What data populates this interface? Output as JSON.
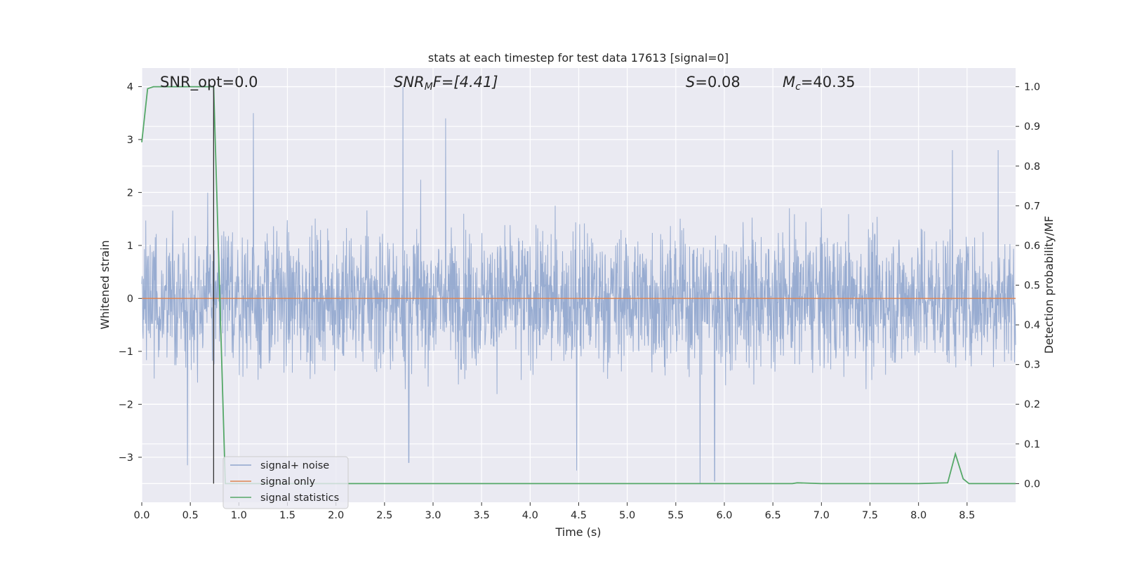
{
  "chart_data": {
    "type": "line",
    "title": "stats at each timestep for test data 17613 [signal=0]",
    "xlabel": "Time (s)",
    "ylabel_left": "Whitened strain",
    "ylabel_right": "Detection probability/MF",
    "xlim": [
      0.0,
      9.0
    ],
    "ylim_left": [
      -3.85,
      4.35
    ],
    "ylim_right": [
      -0.047,
      1.047
    ],
    "xticks": [
      "0.0",
      "0.5",
      "1.0",
      "1.5",
      "2.0",
      "2.5",
      "3.0",
      "3.5",
      "4.0",
      "4.5",
      "5.0",
      "5.5",
      "6.0",
      "6.5",
      "7.0",
      "7.5",
      "8.0",
      "8.5"
    ],
    "yticks_left": [
      "−3",
      "−2",
      "−1",
      "0",
      "1",
      "2",
      "3",
      "4"
    ],
    "yticks_right": [
      "0.0",
      "0.1",
      "0.2",
      "0.3",
      "0.4",
      "0.5",
      "0.6",
      "0.7",
      "0.8",
      "0.9",
      "1.0"
    ],
    "grid": true,
    "legend_location": "lower-left",
    "annotations": {
      "snr_opt": "SNR_opt=0.0",
      "snr_mf": "SNR",
      "snr_mf_sub": "M",
      "snr_mf_rest": "F=[4.41]",
      "s_stat": "S",
      "s_stat_rest": "=0.08",
      "mc": "M",
      "mc_sub": "c",
      "mc_rest": "=40.35"
    },
    "marker_line_x": 0.74,
    "series": [
      {
        "name": "signal+ noise",
        "color": "#8fa5cd",
        "axis": "left",
        "noise_envelope": {
          "typical_abs_max": 2.2,
          "spikes": [
            [
              2.69,
              4.0
            ],
            [
              2.75,
              -3.1
            ],
            [
              1.15,
              3.5
            ],
            [
              3.13,
              3.4
            ],
            [
              5.75,
              -3.5
            ],
            [
              0.47,
              -3.15
            ],
            [
              4.48,
              -3.25
            ],
            [
              5.9,
              -3.45
            ],
            [
              8.35,
              2.8
            ],
            [
              8.82,
              2.8
            ]
          ]
        }
      },
      {
        "name": "signal only",
        "color": "#dd8452",
        "axis": "left",
        "x": [
          0.0,
          9.0
        ],
        "y": [
          0.0,
          0.0
        ]
      },
      {
        "name": "signal statistics",
        "color": "#55a868",
        "axis": "right",
        "x": [
          0.0,
          0.06,
          0.12,
          0.2,
          0.3,
          0.4,
          0.5,
          0.6,
          0.7,
          0.74,
          0.8,
          0.86,
          0.9,
          1.0,
          2.0,
          3.0,
          4.0,
          5.0,
          6.0,
          6.7,
          6.75,
          7.0,
          8.0,
          8.3,
          8.38,
          8.46,
          8.52,
          9.0
        ],
        "y": [
          0.86,
          0.995,
          1.0,
          1.0,
          1.0,
          1.0,
          1.0,
          1.0,
          1.0,
          1.0,
          0.5,
          0.0,
          0.0,
          0.0,
          0.0,
          0.0,
          0.0,
          0.0,
          0.0,
          0.0,
          0.002,
          0.0,
          0.0,
          0.002,
          0.075,
          0.012,
          0.0,
          0.0
        ]
      }
    ]
  }
}
